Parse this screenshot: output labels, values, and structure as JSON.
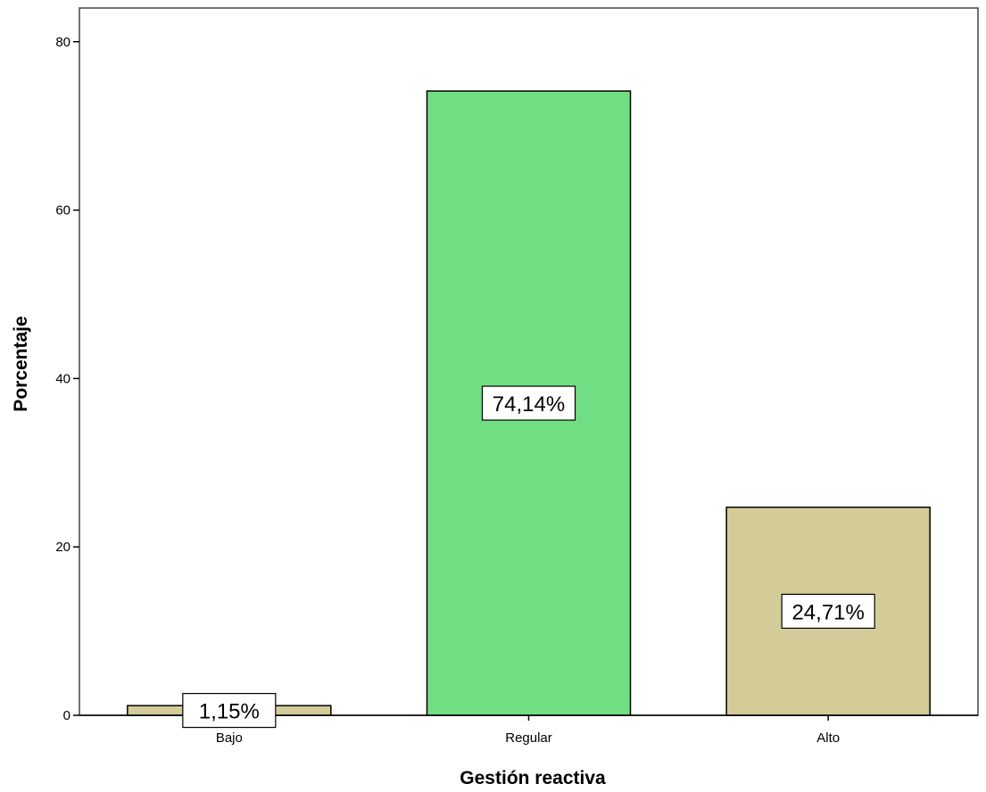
{
  "chart_data": {
    "type": "bar",
    "title": "",
    "xlabel": "Gestión reactiva",
    "ylabel": "Porcentaje",
    "categories": [
      "Bajo",
      "Regular",
      "Alto"
    ],
    "values": [
      1.15,
      74.14,
      24.71
    ],
    "data_labels": [
      "1,15%",
      "74,14%",
      "24,71%"
    ],
    "bar_colors": [
      "#D4CC98",
      "#72DE84",
      "#D4CC98"
    ],
    "ylim": [
      0,
      84
    ],
    "yticks": [
      0,
      20,
      40,
      60,
      80
    ],
    "grid": false,
    "legend": "none"
  }
}
